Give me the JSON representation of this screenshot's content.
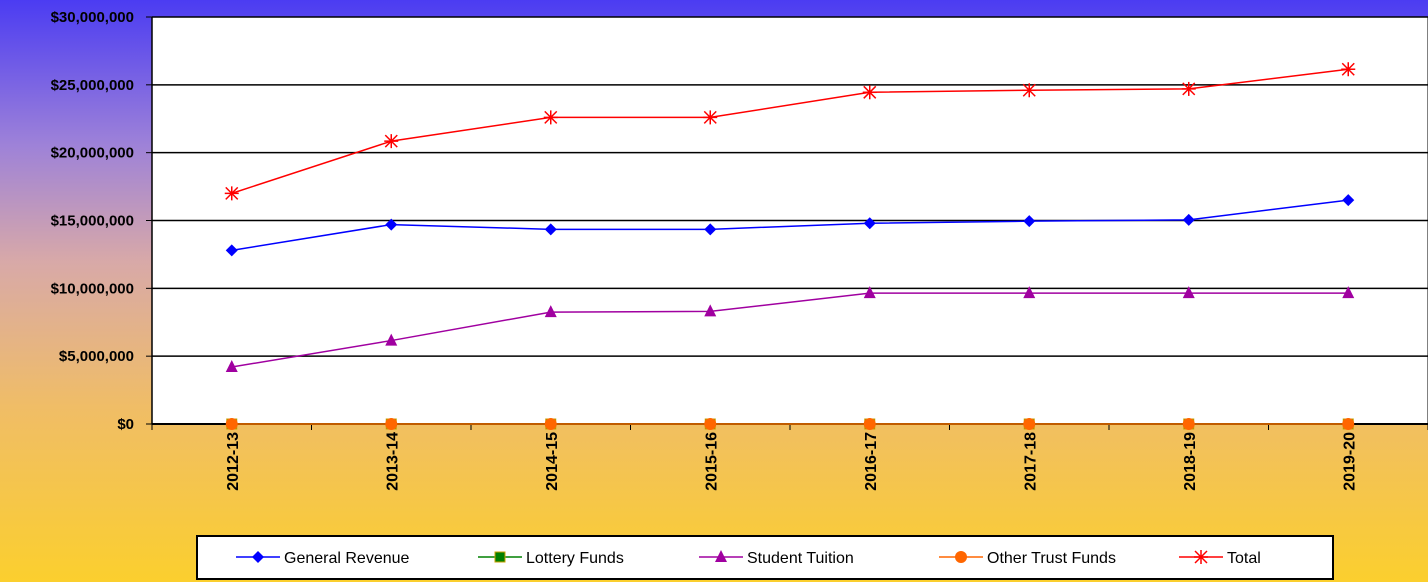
{
  "chart_data": {
    "type": "line",
    "title": "",
    "xlabel": "",
    "ylabel": "",
    "categories": [
      "2012-13",
      "2013-14",
      "2014-15",
      "2015-16",
      "2016-17",
      "2017-18",
      "2018-19",
      "2019-20"
    ],
    "ylim": [
      0,
      30000000
    ],
    "yticks": [
      0,
      5000000,
      10000000,
      15000000,
      20000000,
      25000000,
      30000000
    ],
    "ytick_labels": [
      "$0",
      "$5,000,000",
      "$10,000,000",
      "$15,000,000",
      "$20,000,000",
      "$25,000,000",
      "$30,000,000"
    ],
    "grid": "horizontal",
    "legend_position": "bottom",
    "series": [
      {
        "name": "General Revenue",
        "color": "#0000ff",
        "marker": "diamond",
        "values": [
          12800000,
          14700000,
          14350000,
          14350000,
          14800000,
          14950000,
          15050000,
          16500000
        ]
      },
      {
        "name": "Lottery Funds",
        "color": "#008000",
        "marker": "square",
        "values": [
          0,
          0,
          0,
          0,
          0,
          0,
          0,
          0
        ]
      },
      {
        "name": "Student Tuition",
        "color": "#a000a0",
        "marker": "triangle",
        "values": [
          4200000,
          6150000,
          8250000,
          8300000,
          9650000,
          9650000,
          9650000,
          9650000
        ]
      },
      {
        "name": "Other Trust Funds",
        "color": "#ff6600",
        "marker": "circle",
        "values": [
          0,
          0,
          0,
          0,
          0,
          0,
          0,
          0
        ]
      },
      {
        "name": "Total",
        "color": "#ff0000",
        "marker": "asterisk",
        "values": [
          17000000,
          20850000,
          22600000,
          22600000,
          24450000,
          24600000,
          24700000,
          26150000
        ]
      }
    ]
  }
}
